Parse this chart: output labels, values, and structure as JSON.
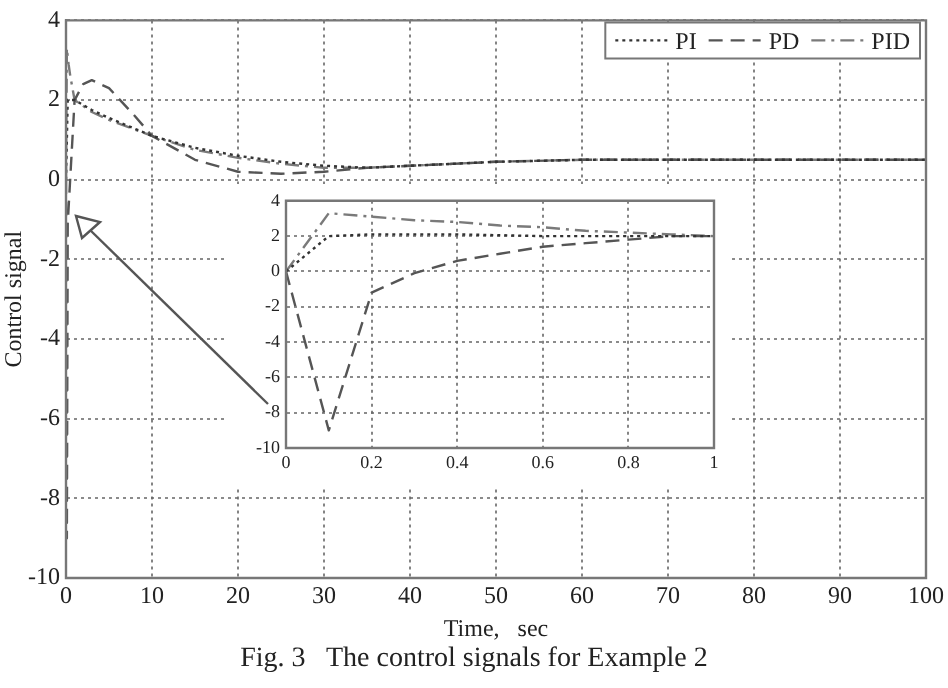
{
  "chart_data": [
    {
      "type": "line",
      "xlabel": "Time,   sec",
      "ylabel": "Control signal",
      "xlim": [
        0,
        100
      ],
      "xticks": [
        0,
        10,
        20,
        30,
        40,
        50,
        60,
        70,
        80,
        90,
        100
      ],
      "ylim": [
        -10,
        4
      ],
      "yticks": [
        -10,
        -8,
        -6,
        -4,
        -2,
        0,
        2,
        4
      ],
      "grid": true,
      "legend": "top right",
      "marker": "none",
      "annotations": [
        "Fig. 3   The control signals for Example 2"
      ],
      "series": [
        {
          "name": "PI",
          "color": "#333333",
          "line_style": "dotted",
          "x": [
            0,
            0.2,
            1,
            3,
            5,
            10,
            15,
            20,
            25,
            30,
            35,
            40,
            50,
            60,
            70,
            80,
            90,
            100
          ],
          "values": [
            0,
            2,
            2,
            1.75,
            1.55,
            1.1,
            0.8,
            0.6,
            0.45,
            0.35,
            0.3,
            0.35,
            0.45,
            0.5,
            0.5,
            0.5,
            0.5,
            0.5
          ]
        },
        {
          "name": "PD",
          "color": "#555555",
          "line_style": "dashed",
          "x": [
            0,
            0.1,
            0.2,
            1,
            2,
            3,
            5,
            8,
            10,
            15,
            20,
            25,
            30,
            35,
            40,
            50,
            60,
            70,
            80,
            90,
            100
          ],
          "values": [
            0,
            -9,
            -1.1,
            2,
            2.4,
            2.5,
            2.3,
            1.6,
            1.1,
            0.5,
            0.2,
            0.15,
            0.2,
            0.3,
            0.35,
            0.45,
            0.5,
            0.5,
            0.5,
            0.5,
            0.5
          ]
        },
        {
          "name": "PID",
          "color": "#7a7a7a",
          "line_style": "dashdot",
          "x": [
            0,
            0.1,
            0.3,
            0.5,
            1,
            3,
            5,
            10,
            15,
            20,
            25,
            30,
            35,
            40,
            50,
            60,
            70,
            80,
            90,
            100
          ],
          "values": [
            0,
            3.3,
            2.9,
            2.6,
            2,
            1.7,
            1.5,
            1.1,
            0.75,
            0.55,
            0.4,
            0.3,
            0.3,
            0.35,
            0.45,
            0.5,
            0.5,
            0.5,
            0.5,
            0.5
          ]
        }
      ]
    },
    {
      "type": "line",
      "xlim": [
        0,
        1
      ],
      "xticks": [
        0,
        0.2,
        0.4,
        0.6,
        0.8,
        1
      ],
      "ylim": [
        -10,
        4
      ],
      "yticks": [
        -10,
        -8,
        -6,
        -4,
        -2,
        0,
        2,
        4
      ],
      "grid": true,
      "marker": "none",
      "series": [
        {
          "color": "#333333",
          "line_style": "dotted",
          "x": [
            0,
            0.1,
            0.2,
            0.4,
            0.6,
            0.8,
            1
          ],
          "values": [
            0,
            2,
            2.1,
            2.1,
            2,
            2,
            2
          ]
        },
        {
          "color": "#555555",
          "line_style": "dashed",
          "x": [
            0,
            0.1,
            0.2,
            0.3,
            0.4,
            0.5,
            0.6,
            0.7,
            0.8,
            0.9,
            1
          ],
          "values": [
            0,
            -9,
            -1.2,
            -0.1,
            0.6,
            1,
            1.4,
            1.6,
            1.8,
            2,
            2
          ]
        },
        {
          "color": "#7a7a7a",
          "line_style": "dashdot",
          "x": [
            0,
            0.1,
            0.2,
            0.3,
            0.4,
            0.5,
            0.6,
            0.7,
            0.8,
            0.9,
            1
          ],
          "values": [
            0,
            3.3,
            3.1,
            2.9,
            2.8,
            2.6,
            2.5,
            2.3,
            2.2,
            2.1,
            2
          ]
        }
      ]
    }
  ]
}
